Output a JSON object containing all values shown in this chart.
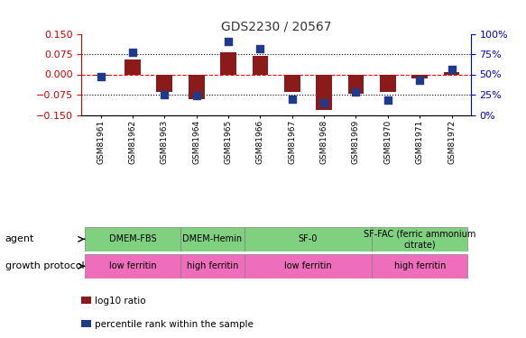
{
  "title": "GDS2230 / 20567",
  "samples": [
    "GSM81961",
    "GSM81962",
    "GSM81963",
    "GSM81964",
    "GSM81965",
    "GSM81966",
    "GSM81967",
    "GSM81968",
    "GSM81969",
    "GSM81970",
    "GSM81971",
    "GSM81972"
  ],
  "log10_ratio": [
    -0.005,
    0.055,
    -0.065,
    -0.09,
    0.082,
    0.068,
    -0.065,
    -0.13,
    -0.07,
    -0.065,
    -0.015,
    0.008
  ],
  "percentile_rank": [
    47,
    77,
    25,
    24,
    90,
    82,
    20,
    15,
    28,
    18,
    43,
    56
  ],
  "ylim_left": [
    -0.15,
    0.15
  ],
  "ylim_right": [
    0,
    100
  ],
  "yticks_left": [
    -0.15,
    -0.075,
    0,
    0.075,
    0.15
  ],
  "yticks_right": [
    0,
    25,
    50,
    75,
    100
  ],
  "dotted_lines": [
    -0.075,
    0.075
  ],
  "bar_color": "#8B1A1A",
  "dot_color": "#1E3A8A",
  "agent_groups": [
    {
      "label": "DMEM-FBS",
      "start": 0,
      "end": 3
    },
    {
      "label": "DMEM-Hemin",
      "start": 3,
      "end": 5
    },
    {
      "label": "SF-0",
      "start": 5,
      "end": 9
    },
    {
      "label": "SF-FAC (ferric ammonium\ncitrate)",
      "start": 9,
      "end": 12
    }
  ],
  "growth_groups": [
    {
      "label": "low ferritin",
      "start": 0,
      "end": 3
    },
    {
      "label": "high ferritin",
      "start": 3,
      "end": 5
    },
    {
      "label": "low ferritin",
      "start": 5,
      "end": 9
    },
    {
      "label": "high ferritin",
      "start": 9,
      "end": 12
    }
  ],
  "agent_label": "agent",
  "growth_label": "growth protocol",
  "legend_bar_label": "log10 ratio",
  "legend_dot_label": "percentile rank within the sample",
  "title_color": "#333333",
  "left_axis_color": "#CC0000",
  "right_axis_color": "#0000CC",
  "green_color": "#7FD17F",
  "pink_color": "#EE6EBB",
  "background_color": "#FFFFFF"
}
